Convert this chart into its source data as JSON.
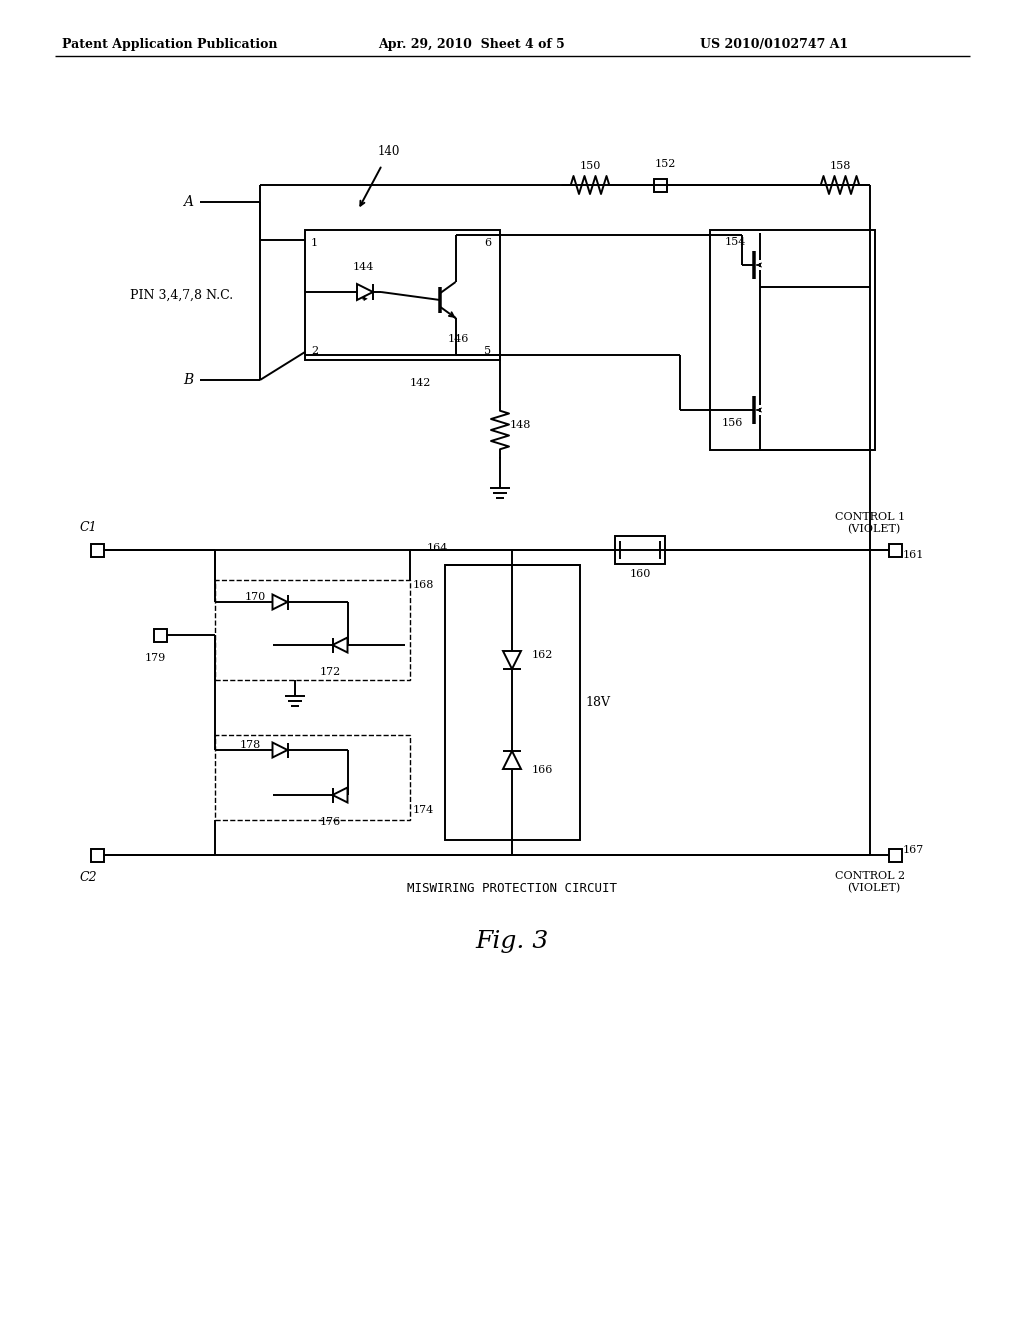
{
  "bg_color": "#ffffff",
  "lw": 1.4,
  "header_left": "Patent Application Publication",
  "header_center": "Apr. 29, 2010  Sheet 4 of 5",
  "header_right": "US 2010/0102747 A1",
  "fig_label": "Fig. 3",
  "bottom_label": "MISWIRING PROTECTION CIRCUIT"
}
